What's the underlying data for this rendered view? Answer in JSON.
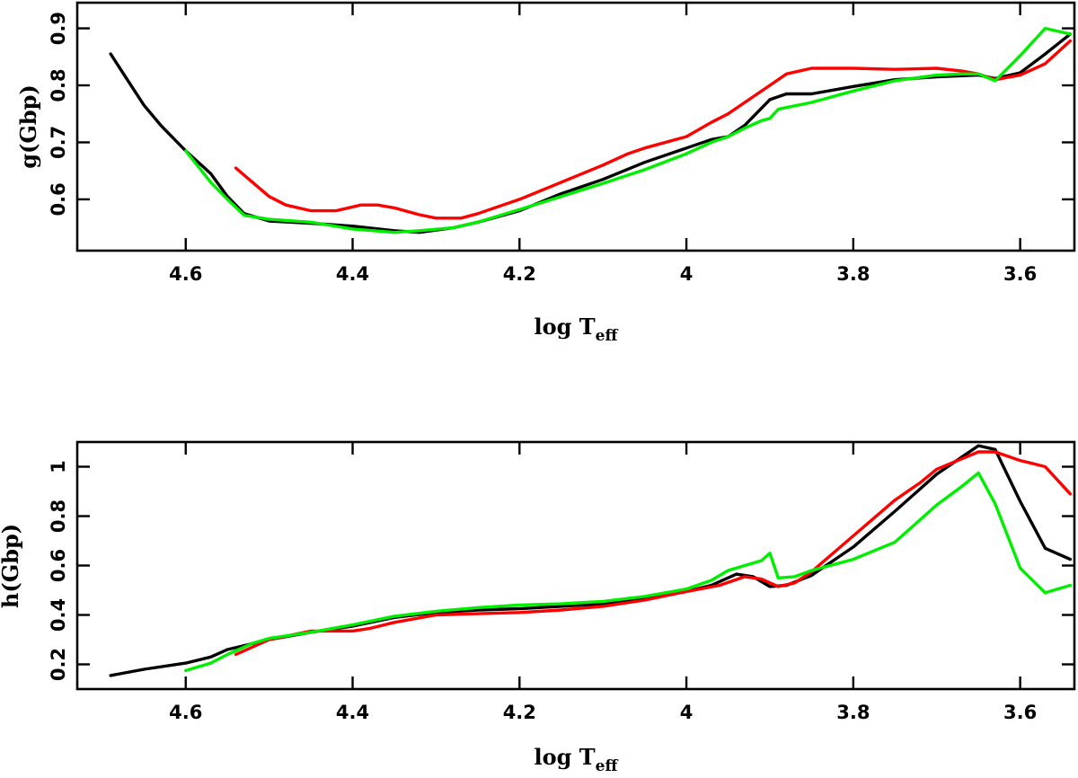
{
  "chart_data": [
    {
      "type": "line",
      "xlabel": "log T",
      "xlabel_sub": "eff",
      "ylabel": "g(Gbp)",
      "xlim": [
        4.73,
        3.535
      ],
      "ylim": [
        0.51,
        0.945
      ],
      "xticks": [
        4.6,
        4.4,
        4.2,
        4,
        3.8,
        3.6
      ],
      "xtick_labels": [
        "4.6",
        "4.4",
        "4.2",
        "4",
        "3.8",
        "3.6"
      ],
      "yticks": [
        0.6,
        0.7,
        0.8,
        0.9
      ],
      "ytick_labels": [
        "0.6",
        "0.7",
        "0.8",
        "0.9"
      ],
      "series": [
        {
          "color": "#000000",
          "x": [
            4.69,
            4.67,
            4.65,
            4.63,
            4.6,
            4.57,
            4.55,
            4.53,
            4.5,
            4.45,
            4.4,
            4.35,
            4.32,
            4.28,
            4.25,
            4.2,
            4.15,
            4.1,
            4.05,
            4.0,
            3.97,
            3.95,
            3.93,
            3.9,
            3.88,
            3.85,
            3.8,
            3.75,
            3.7,
            3.65,
            3.63,
            3.6,
            3.57,
            3.54
          ],
          "y": [
            0.855,
            0.81,
            0.765,
            0.73,
            0.685,
            0.645,
            0.605,
            0.575,
            0.562,
            0.558,
            0.553,
            0.545,
            0.542,
            0.55,
            0.56,
            0.58,
            0.61,
            0.635,
            0.665,
            0.69,
            0.705,
            0.71,
            0.73,
            0.775,
            0.785,
            0.785,
            0.798,
            0.81,
            0.815,
            0.818,
            0.812,
            0.822,
            0.855,
            0.89
          ]
        },
        {
          "color": "#ff0000",
          "x": [
            4.54,
            4.52,
            4.5,
            4.48,
            4.45,
            4.42,
            4.39,
            4.37,
            4.35,
            4.32,
            4.3,
            4.27,
            4.25,
            4.2,
            4.15,
            4.1,
            4.07,
            4.05,
            4.0,
            3.97,
            3.95,
            3.93,
            3.9,
            3.88,
            3.85,
            3.8,
            3.75,
            3.7,
            3.67,
            3.65,
            3.63,
            3.6,
            3.57,
            3.54
          ],
          "y": [
            0.655,
            0.63,
            0.605,
            0.59,
            0.58,
            0.58,
            0.59,
            0.59,
            0.585,
            0.573,
            0.567,
            0.567,
            0.575,
            0.6,
            0.63,
            0.66,
            0.68,
            0.69,
            0.71,
            0.735,
            0.75,
            0.77,
            0.8,
            0.82,
            0.83,
            0.83,
            0.828,
            0.83,
            0.825,
            0.82,
            0.81,
            0.818,
            0.838,
            0.878
          ]
        },
        {
          "color": "#00ee00",
          "x": [
            4.6,
            4.57,
            4.55,
            4.53,
            4.5,
            4.45,
            4.4,
            4.35,
            4.32,
            4.28,
            4.25,
            4.2,
            4.15,
            4.1,
            4.05,
            4.0,
            3.97,
            3.95,
            3.93,
            3.91,
            3.9,
            3.89,
            3.85,
            3.8,
            3.75,
            3.7,
            3.67,
            3.65,
            3.63,
            3.6,
            3.57,
            3.54
          ],
          "y": [
            0.685,
            0.63,
            0.6,
            0.572,
            0.565,
            0.56,
            0.548,
            0.542,
            0.545,
            0.55,
            0.56,
            0.582,
            0.605,
            0.628,
            0.652,
            0.68,
            0.7,
            0.71,
            0.725,
            0.738,
            0.742,
            0.758,
            0.77,
            0.79,
            0.808,
            0.818,
            0.82,
            0.82,
            0.808,
            0.852,
            0.9,
            0.89
          ]
        }
      ]
    },
    {
      "type": "line",
      "xlabel": "log T",
      "xlabel_sub": "eff",
      "ylabel": "h(Gbp)",
      "xlim": [
        4.73,
        3.535
      ],
      "ylim": [
        0.1,
        1.1
      ],
      "xticks": [
        4.6,
        4.4,
        4.2,
        4,
        3.8,
        3.6
      ],
      "xtick_labels": [
        "4.6",
        "4.4",
        "4.2",
        "4",
        "3.8",
        "3.6"
      ],
      "yticks": [
        0.2,
        0.4,
        0.6,
        0.8,
        1.0
      ],
      "ytick_labels": [
        "0.2",
        "0.4",
        "0.6",
        "0.8",
        "1"
      ],
      "series": [
        {
          "color": "#000000",
          "x": [
            4.69,
            4.65,
            4.6,
            4.57,
            4.55,
            4.5,
            4.45,
            4.4,
            4.35,
            4.3,
            4.25,
            4.2,
            4.15,
            4.1,
            4.05,
            4.0,
            3.97,
            3.94,
            3.92,
            3.9,
            3.88,
            3.85,
            3.8,
            3.75,
            3.7,
            3.65,
            3.63,
            3.6,
            3.57,
            3.54
          ],
          "y": [
            0.155,
            0.18,
            0.205,
            0.23,
            0.26,
            0.3,
            0.33,
            0.355,
            0.39,
            0.41,
            0.42,
            0.425,
            0.435,
            0.445,
            0.465,
            0.495,
            0.52,
            0.565,
            0.555,
            0.515,
            0.52,
            0.56,
            0.675,
            0.82,
            0.97,
            1.085,
            1.07,
            0.86,
            0.67,
            0.625
          ]
        },
        {
          "color": "#ff0000",
          "x": [
            4.54,
            4.5,
            4.45,
            4.4,
            4.38,
            4.35,
            4.3,
            4.25,
            4.2,
            4.15,
            4.1,
            4.05,
            4.0,
            3.96,
            3.93,
            3.91,
            3.89,
            3.87,
            3.85,
            3.8,
            3.75,
            3.72,
            3.7,
            3.65,
            3.63,
            3.6,
            3.57,
            3.54
          ],
          "y": [
            0.24,
            0.3,
            0.335,
            0.335,
            0.345,
            0.37,
            0.4,
            0.405,
            0.41,
            0.42,
            0.435,
            0.46,
            0.495,
            0.52,
            0.555,
            0.545,
            0.515,
            0.53,
            0.575,
            0.72,
            0.865,
            0.935,
            0.99,
            1.06,
            1.06,
            1.025,
            1.0,
            0.89
          ]
        },
        {
          "color": "#00ee00",
          "x": [
            4.6,
            4.57,
            4.55,
            4.52,
            4.5,
            4.45,
            4.4,
            4.35,
            4.3,
            4.25,
            4.2,
            4.15,
            4.1,
            4.05,
            4.0,
            3.97,
            3.95,
            3.93,
            3.91,
            3.9,
            3.89,
            3.87,
            3.85,
            3.8,
            3.75,
            3.7,
            3.67,
            3.65,
            3.63,
            3.6,
            3.57,
            3.54
          ],
          "y": [
            0.175,
            0.205,
            0.24,
            0.285,
            0.305,
            0.33,
            0.36,
            0.395,
            0.415,
            0.43,
            0.44,
            0.445,
            0.455,
            0.475,
            0.505,
            0.54,
            0.58,
            0.6,
            0.62,
            0.65,
            0.55,
            0.555,
            0.58,
            0.625,
            0.695,
            0.845,
            0.92,
            0.975,
            0.85,
            0.59,
            0.49,
            0.52
          ]
        }
      ]
    }
  ]
}
